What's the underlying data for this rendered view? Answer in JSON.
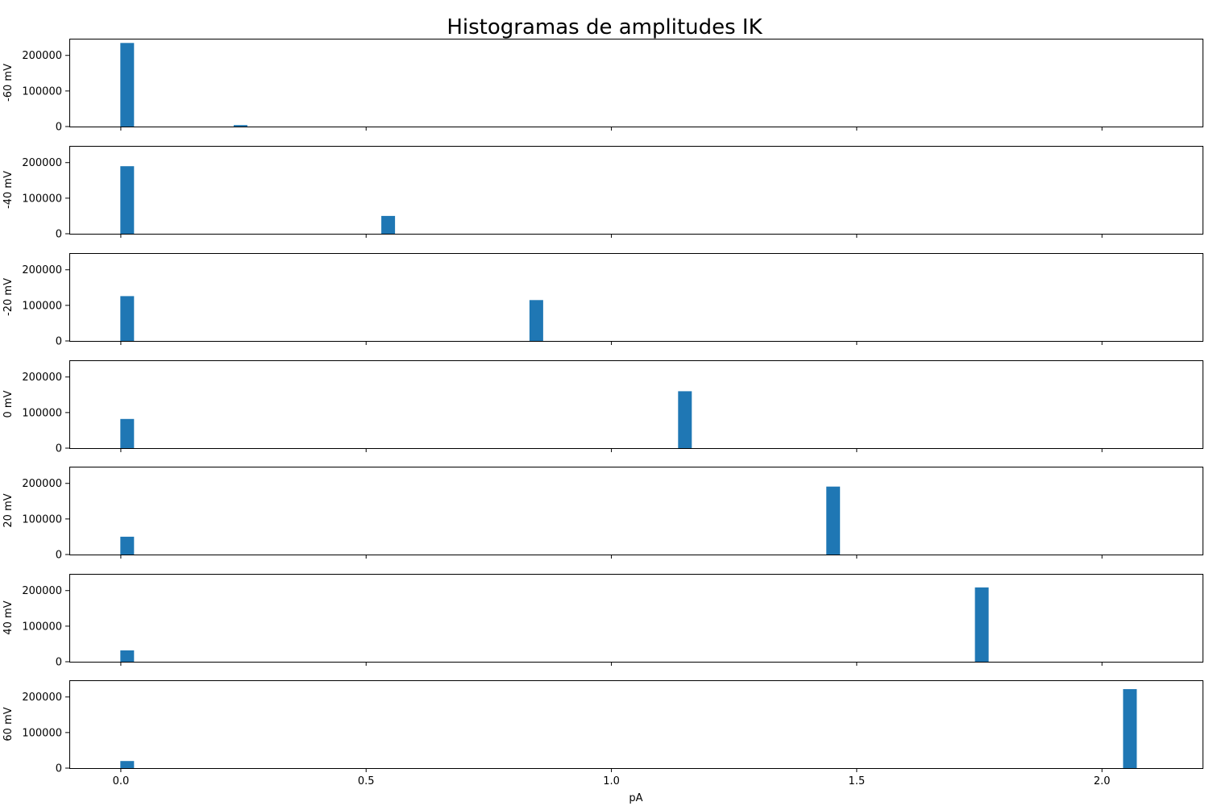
{
  "chart_data": {
    "type": "bar",
    "title": "Histogramas de amplitudes IK",
    "xlabel": "pA",
    "xlim": [
      -0.105,
      2.205
    ],
    "xticks": [
      0.0,
      0.5,
      1.0,
      1.5,
      2.0
    ],
    "xtick_labels": [
      "0.0",
      "0.5",
      "1.0",
      "1.5",
      "2.0"
    ],
    "ylim": [
      0,
      247000
    ],
    "yticks": [
      0,
      100000,
      200000
    ],
    "ytick_labels": [
      "0",
      "100000",
      "200000"
    ],
    "bar_width": 0.028,
    "bar_color": "#1f77b4",
    "panels": [
      {
        "ylabel": "-60 mV",
        "bars": [
          {
            "x": 0.0,
            "height": 235000
          },
          {
            "x": 0.231,
            "height": 4000
          }
        ]
      },
      {
        "ylabel": "-40 mV",
        "bars": [
          {
            "x": 0.0,
            "height": 190000
          },
          {
            "x": 0.532,
            "height": 50000
          }
        ]
      },
      {
        "ylabel": "-20 mV",
        "bars": [
          {
            "x": 0.0,
            "height": 126000
          },
          {
            "x": 0.834,
            "height": 115000
          }
        ]
      },
      {
        "ylabel": "0 mV",
        "bars": [
          {
            "x": 0.0,
            "height": 82000
          },
          {
            "x": 1.137,
            "height": 160000
          }
        ]
      },
      {
        "ylabel": "20 mV",
        "bars": [
          {
            "x": 0.0,
            "height": 50000
          },
          {
            "x": 1.439,
            "height": 191000
          }
        ]
      },
      {
        "ylabel": "40 mV",
        "bars": [
          {
            "x": 0.0,
            "height": 32000
          },
          {
            "x": 1.742,
            "height": 209000
          }
        ]
      },
      {
        "ylabel": "60 mV",
        "bars": [
          {
            "x": 0.0,
            "height": 20000
          },
          {
            "x": 2.044,
            "height": 222000
          }
        ]
      }
    ]
  }
}
